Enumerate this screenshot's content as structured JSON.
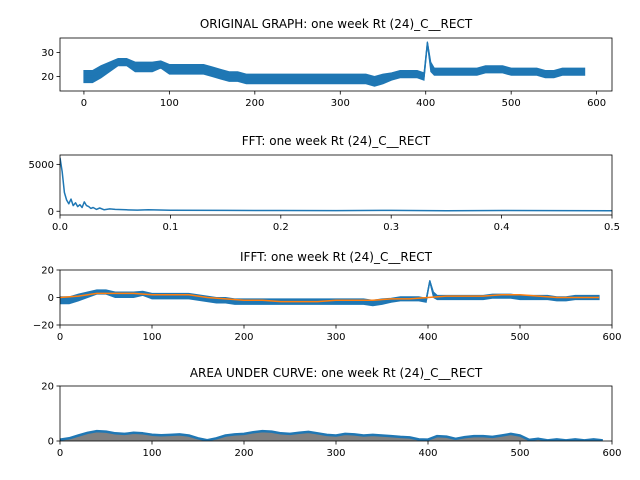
{
  "chart_data": [
    {
      "type": "line",
      "title": "ORIGINAL GRAPH: one week Rt (24)_C__RECT",
      "xlim": [
        -28,
        618
      ],
      "ylim": [
        14,
        36
      ],
      "xticks": [
        0,
        100,
        200,
        300,
        400,
        500,
        600
      ],
      "yticks": [
        20,
        30
      ],
      "series": [
        {
          "color": "#1f77b4",
          "style": "dense-band",
          "x": [
            0,
            10,
            20,
            30,
            40,
            50,
            60,
            70,
            80,
            90,
            100,
            110,
            120,
            130,
            140,
            150,
            160,
            170,
            180,
            190,
            200,
            210,
            220,
            230,
            240,
            250,
            260,
            270,
            280,
            290,
            300,
            310,
            320,
            330,
            340,
            350,
            360,
            370,
            380,
            390,
            398,
            402,
            406,
            410,
            420,
            430,
            440,
            450,
            460,
            470,
            480,
            490,
            500,
            510,
            520,
            530,
            540,
            550,
            560,
            570,
            580,
            586
          ],
          "y": [
            20,
            20,
            22,
            24,
            26,
            26,
            24,
            24,
            24,
            25,
            23,
            23,
            23,
            23,
            23,
            22,
            21,
            20,
            20,
            19,
            19,
            19,
            19,
            19,
            19,
            19,
            19,
            19,
            19,
            19,
            19,
            19,
            19,
            19,
            18,
            19,
            20,
            21,
            21,
            21,
            20,
            34,
            24,
            22,
            22,
            22,
            22,
            22,
            22,
            23,
            23,
            23,
            22,
            22,
            22,
            22,
            21,
            21,
            22,
            22,
            22,
            22
          ],
          "band": [
            2.5,
            2.5,
            2.5,
            2,
            1.5,
            1.5,
            2,
            2,
            2,
            1.5,
            2,
            2,
            2,
            2,
            2,
            2,
            2,
            2,
            2,
            2,
            2,
            2,
            2,
            2,
            2,
            2,
            2,
            2,
            2,
            2,
            2,
            2,
            2,
            2,
            2,
            2,
            1.5,
            1.5,
            1.5,
            1.5,
            1.5,
            0.5,
            2,
            1.5,
            1.5,
            1.5,
            1.5,
            1.5,
            1.5,
            1.5,
            1.5,
            1.5,
            1.5,
            1.5,
            1.5,
            1.5,
            1.5,
            1.5,
            1.5,
            1.5,
            1.5,
            1.5
          ]
        }
      ]
    },
    {
      "type": "line",
      "title": "FFT: one week Rt (24)_C__RECT",
      "xlim": [
        0,
        0.5
      ],
      "ylim": [
        -400,
        6000
      ],
      "xticks": [
        0.0,
        0.1,
        0.2,
        0.3,
        0.4,
        0.5
      ],
      "yticks": [
        0,
        5000
      ],
      "series": [
        {
          "color": "#1f77b4",
          "x": [
            0,
            0.002,
            0.004,
            0.006,
            0.008,
            0.01,
            0.012,
            0.014,
            0.016,
            0.018,
            0.02,
            0.022,
            0.024,
            0.026,
            0.028,
            0.03,
            0.033,
            0.036,
            0.04,
            0.045,
            0.05,
            0.06,
            0.07,
            0.08,
            0.1,
            0.15,
            0.2,
            0.25,
            0.3,
            0.35,
            0.4,
            0.45,
            0.5
          ],
          "y": [
            5700,
            4200,
            2000,
            1200,
            800,
            1300,
            600,
            900,
            500,
            700,
            400,
            1000,
            600,
            500,
            300,
            400,
            200,
            350,
            150,
            250,
            200,
            150,
            120,
            150,
            100,
            90,
            80,
            70,
            90,
            60,
            80,
            70,
            60
          ]
        }
      ]
    },
    {
      "type": "line",
      "title": "IFFT: one week Rt (24)_C__RECT",
      "xlim": [
        0,
        600
      ],
      "ylim": [
        -20,
        20
      ],
      "xticks": [
        0,
        100,
        200,
        300,
        400,
        500,
        600
      ],
      "yticks": [
        -20,
        0,
        20
      ],
      "series": [
        {
          "color": "#1f77b4",
          "style": "dense-band",
          "x": [
            0,
            10,
            20,
            30,
            40,
            50,
            60,
            70,
            80,
            90,
            100,
            110,
            120,
            130,
            140,
            150,
            160,
            170,
            180,
            190,
            200,
            210,
            220,
            230,
            240,
            250,
            260,
            270,
            280,
            290,
            300,
            310,
            320,
            330,
            340,
            350,
            360,
            370,
            380,
            390,
            398,
            402,
            406,
            410,
            420,
            430,
            440,
            450,
            460,
            470,
            480,
            490,
            500,
            510,
            520,
            530,
            540,
            550,
            560,
            570,
            580,
            586
          ],
          "y": [
            -2,
            -2,
            0,
            2,
            4,
            4,
            2,
            2,
            2,
            3,
            1,
            1,
            1,
            1,
            1,
            0,
            -1,
            -2,
            -2,
            -3,
            -3,
            -3,
            -3,
            -3,
            -3,
            -3,
            -3,
            -3,
            -3,
            -3,
            -3,
            -3,
            -3,
            -3,
            -4,
            -3,
            -2,
            -1,
            -1,
            -1,
            -2,
            12,
            2,
            0,
            0,
            0,
            0,
            0,
            0,
            1,
            1,
            1,
            0,
            0,
            0,
            0,
            -1,
            -1,
            0,
            0,
            0,
            0
          ],
          "band": [
            2.5,
            2.5,
            2.5,
            2,
            1.5,
            1.5,
            2,
            2,
            2,
            1.5,
            2,
            2,
            2,
            2,
            2,
            2,
            2,
            2,
            2,
            2,
            2,
            2,
            2,
            2,
            2,
            2,
            2,
            2,
            2,
            2,
            2,
            2,
            2,
            2,
            2,
            2,
            1.5,
            1.5,
            1.5,
            1.5,
            1.5,
            0.5,
            2,
            1.5,
            1.5,
            1.5,
            1.5,
            1.5,
            1.5,
            1.5,
            1.5,
            1.5,
            1.5,
            1.5,
            1.5,
            1.5,
            1.5,
            1.5,
            1.5,
            1.5,
            1.5,
            1.5
          ]
        },
        {
          "color": "#ff7f0e",
          "x": [
            0,
            20,
            40,
            60,
            80,
            100,
            120,
            140,
            160,
            180,
            200,
            220,
            240,
            260,
            280,
            300,
            320,
            340,
            360,
            380,
            400,
            420,
            440,
            460,
            480,
            500,
            520,
            540,
            560,
            580,
            586
          ],
          "y": [
            0,
            1,
            3,
            3,
            3,
            2,
            2,
            2,
            0,
            -1,
            -2,
            -2,
            -3,
            -3,
            -3,
            -2,
            -2,
            -2,
            -1,
            -1,
            0,
            1,
            1,
            1,
            2,
            2,
            1,
            0,
            0,
            0,
            0
          ]
        }
      ]
    },
    {
      "type": "area",
      "title": "AREA UNDER CURVE: one week Rt (24)_C__RECT",
      "xlim": [
        0,
        600
      ],
      "ylim": [
        0,
        20
      ],
      "xticks": [
        0,
        100,
        200,
        300,
        400,
        500,
        600
      ],
      "yticks": [
        0,
        20
      ],
      "series": [
        {
          "color": "#1f77b4",
          "fill": "#808080",
          "x": [
            0,
            10,
            20,
            30,
            40,
            50,
            60,
            70,
            80,
            90,
            100,
            110,
            120,
            130,
            140,
            150,
            160,
            170,
            180,
            190,
            200,
            210,
            220,
            230,
            240,
            250,
            260,
            270,
            280,
            290,
            300,
            310,
            320,
            330,
            340,
            350,
            360,
            370,
            380,
            390,
            400,
            410,
            420,
            430,
            440,
            450,
            460,
            470,
            480,
            490,
            500,
            510,
            520,
            530,
            540,
            550,
            560,
            570,
            580,
            590
          ],
          "y": [
            0.5,
            1.0,
            2.0,
            3.0,
            3.6,
            3.4,
            2.8,
            2.6,
            3.0,
            2.8,
            2.3,
            2.1,
            2.2,
            2.4,
            2.0,
            1.0,
            0.3,
            1.0,
            2.0,
            2.4,
            2.6,
            3.2,
            3.6,
            3.4,
            2.8,
            2.6,
            3.0,
            3.3,
            2.8,
            2.2,
            2.0,
            2.6,
            2.4,
            2.0,
            2.2,
            2.0,
            1.8,
            1.5,
            1.3,
            0.6,
            0.5,
            1.8,
            1.6,
            0.8,
            1.4,
            1.8,
            1.8,
            1.5,
            2.0,
            2.6,
            2.0,
            0.4,
            0.8,
            0.2,
            0.6,
            0.2,
            0.6,
            0.2,
            0.6,
            0.2
          ]
        }
      ]
    }
  ]
}
